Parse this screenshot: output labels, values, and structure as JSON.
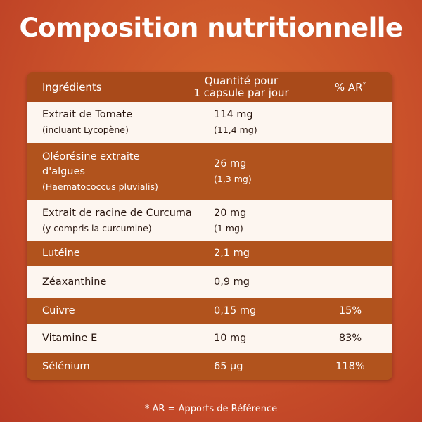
{
  "header": {
    "title": "Composition nutritionnelle"
  },
  "table": {
    "columns": [
      {
        "text": "Ingrédients"
      },
      {
        "lines": [
          "Quantité pour",
          "1 capsule par jour"
        ]
      },
      {
        "text": "% AR",
        "sup": "*"
      }
    ],
    "rows": [
      {
        "name": [
          "Extrait de Tomate",
          "(incluant Lycopène)"
        ],
        "quantity": [
          "114 mg",
          "(11,4 mg)"
        ]
      },
      {
        "name": [
          "Oléorésine extraite",
          "d'algues",
          "(Haematococcus pluvialis)"
        ],
        "quantity": [
          "26 mg",
          "(1,3 mg)"
        ]
      },
      {
        "name": [
          "Extrait de racine de Curcuma",
          "(y compris la curcumine)"
        ],
        "quantity": [
          "20 mg",
          "(1 mg)"
        ]
      },
      {
        "name": [
          "Lutéine"
        ],
        "quantity": [
          "2,1 mg"
        ]
      },
      {
        "name": [
          "Zéaxanthine"
        ],
        "quantity": [
          "0,9 mg"
        ]
      },
      {
        "name": [
          "Cuivre"
        ],
        "quantity": [
          "0,15 mg"
        ],
        "ar": "15%"
      },
      {
        "name": [
          "Vitamine E"
        ],
        "quantity": [
          "10 mg"
        ],
        "ar": "83%"
      },
      {
        "name": [
          "Sélénium"
        ],
        "quantity": [
          "65 µg"
        ],
        "ar": "118%"
      }
    ]
  },
  "footnote": "* AR = Apports de Référence"
}
